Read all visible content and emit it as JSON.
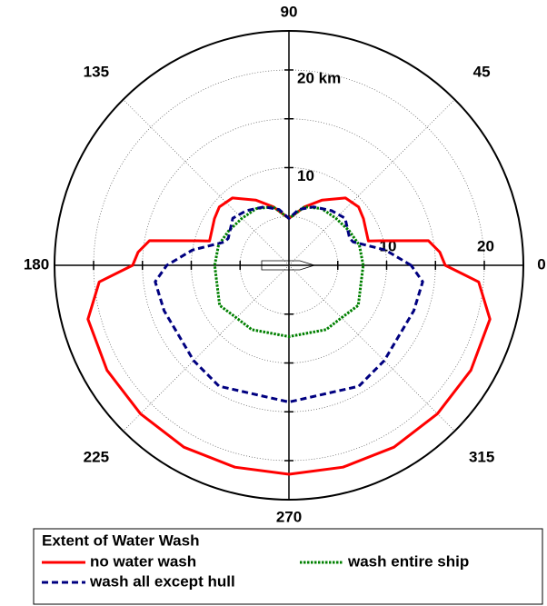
{
  "chart_data": {
    "type": "polar",
    "rlim": [
      0,
      24
    ],
    "rticks": [
      5,
      10,
      15,
      20
    ],
    "rlabels": [
      {
        "value": 10,
        "label": "10"
      },
      {
        "value": 20,
        "label": "20 km"
      }
    ],
    "rlabels_horizontal": [
      10,
      20
    ],
    "thetaticks": [
      0,
      45,
      90,
      135,
      180,
      225,
      270,
      315
    ],
    "legend_title": "Extent of Water Wash",
    "series": [
      {
        "name": "no water wash",
        "color": "#ff0000",
        "style": "solid",
        "theta": [
          0,
          5,
          10,
          15,
          17,
          32,
          40,
          50,
          63,
          75,
          90,
          105,
          117,
          130,
          140,
          148,
          163,
          165,
          170,
          175,
          180,
          185,
          195,
          210,
          225,
          240,
          255,
          270,
          285,
          300,
          315,
          330,
          345,
          355
        ],
        "values": [
          16,
          15.5,
          14.5,
          9.7,
          8.5,
          9.0,
          9.3,
          9.0,
          7.5,
          6.2,
          4.8,
          6.2,
          7.5,
          9.0,
          9.3,
          9.0,
          8.5,
          9.7,
          14.5,
          15.5,
          16,
          19.5,
          21.3,
          21.5,
          21.5,
          21.5,
          21.4,
          21.4,
          21.4,
          21.5,
          21.5,
          21.5,
          21.3,
          19.5
        ]
      },
      {
        "name": "wash entire ship",
        "color": "#008000",
        "style": "dotted",
        "theta": [
          0,
          16,
          30,
          45,
          60,
          75,
          90,
          105,
          120,
          135,
          150,
          164,
          180,
          210,
          225,
          240,
          270,
          300,
          315,
          330
        ],
        "values": [
          7.6,
          7.5,
          7.1,
          6.8,
          6.7,
          6.2,
          4.8,
          6.2,
          6.7,
          6.8,
          7.1,
          7.5,
          7.6,
          8.2,
          7.6,
          7.6,
          7.3,
          7.6,
          7.6,
          8.2
        ]
      },
      {
        "name": "wash all except hull",
        "color": "#000080",
        "style": "dashed",
        "theta": [
          0,
          9,
          20,
          24,
          40,
          52,
          67,
          80,
          90,
          100,
          113,
          128,
          140,
          156,
          160,
          171,
          180,
          187,
          200,
          225,
          240,
          270,
          300,
          315,
          340,
          353
        ],
        "values": [
          12.5,
          10,
          7.0,
          6.8,
          7.5,
          7.1,
          6.5,
          5.8,
          4.8,
          5.8,
          6.5,
          7.1,
          7.5,
          6.8,
          7.0,
          10,
          12.5,
          13.8,
          13.6,
          13.8,
          14.3,
          14.0,
          14.3,
          13.8,
          13.6,
          13.8
        ]
      }
    ]
  }
}
